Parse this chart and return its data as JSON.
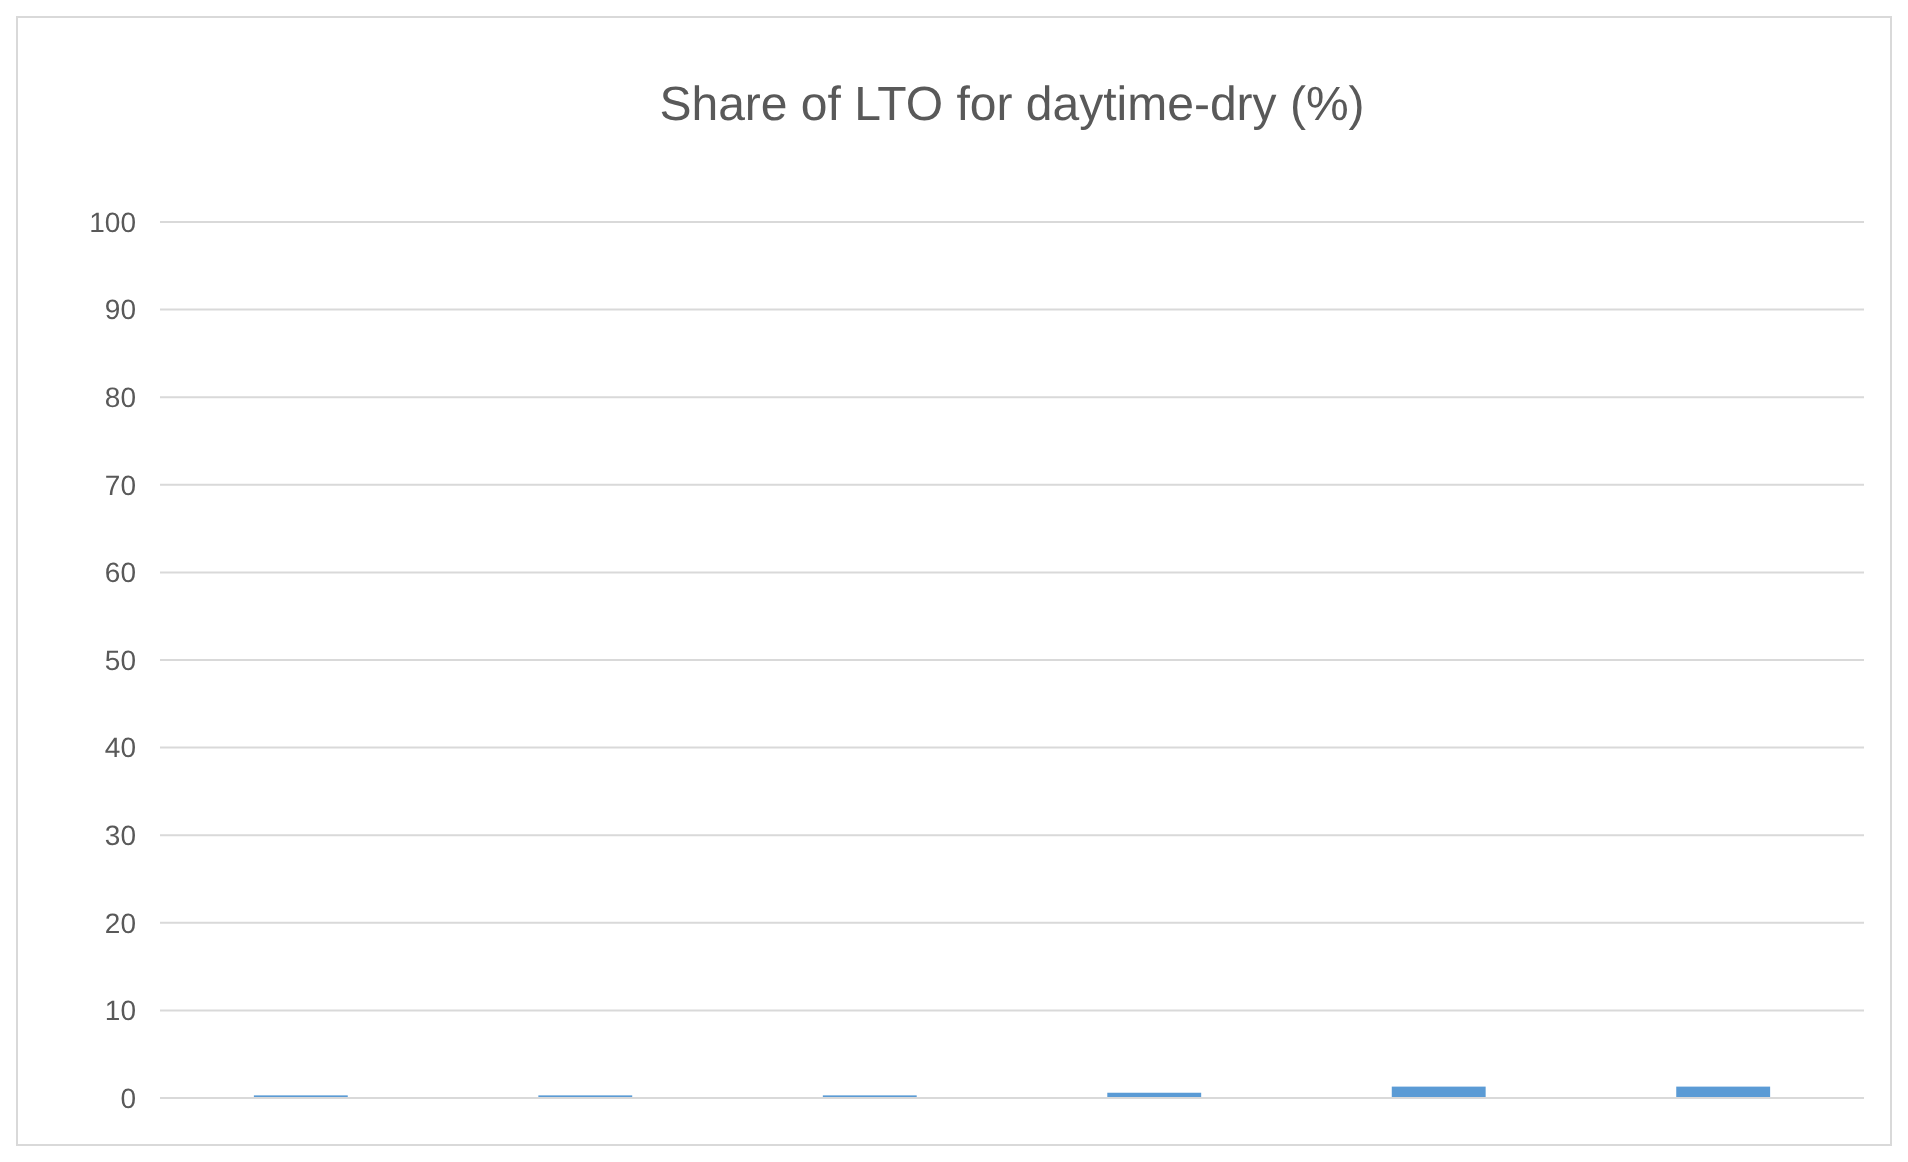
{
  "chart_data": {
    "type": "bar",
    "title": "Share of LTO for daytime-dry  (%)",
    "categories": [
      null,
      null,
      null,
      null,
      null,
      null
    ],
    "values": [
      0.3,
      0.3,
      0.3,
      0.6,
      1.3,
      1.3
    ],
    "color": "#5b9bd5",
    "ylim": [
      0,
      100
    ],
    "yticks": [
      0,
      10,
      20,
      30,
      40,
      50,
      60,
      70,
      80,
      90,
      100
    ],
    "grid": "y"
  }
}
